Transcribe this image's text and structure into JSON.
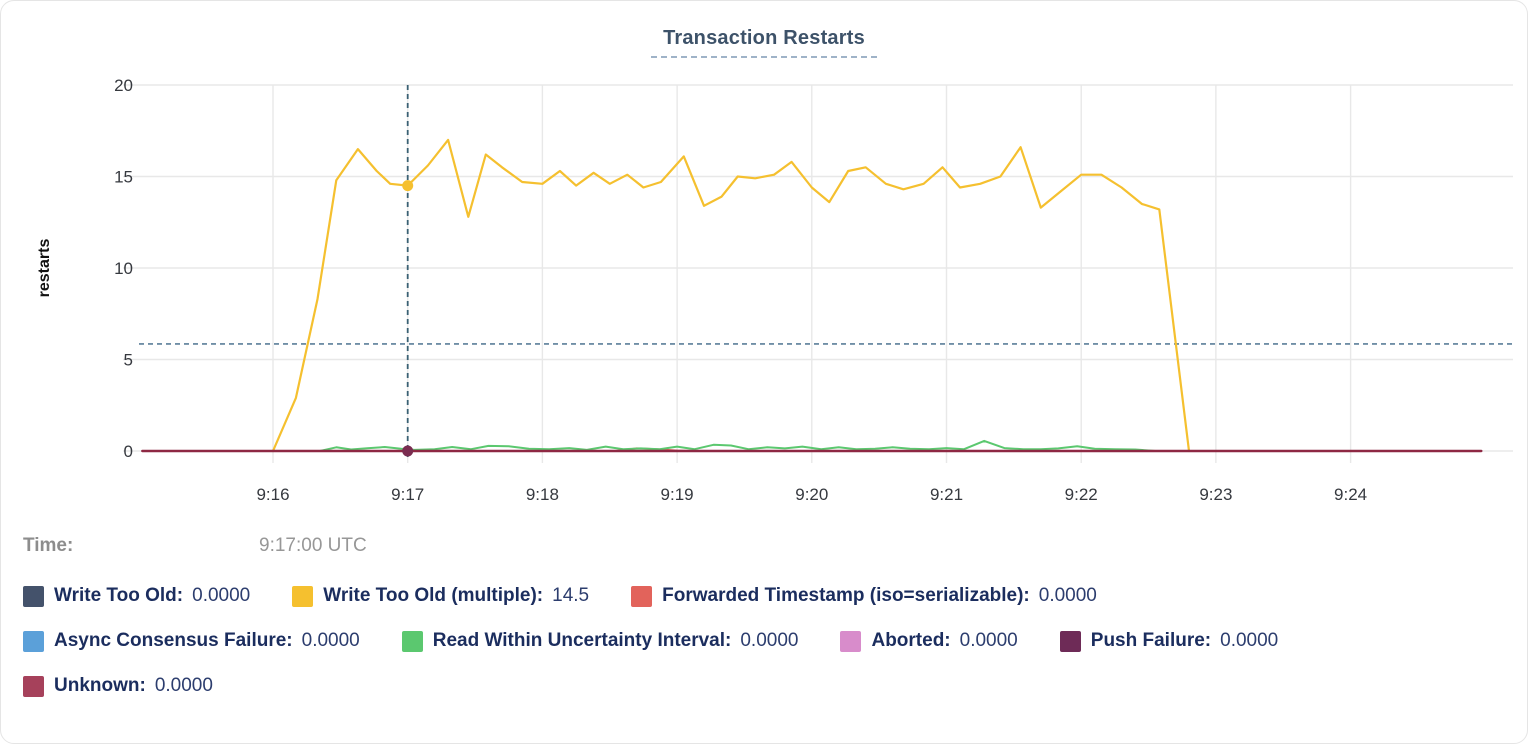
{
  "header": {
    "title": "Transaction Restarts"
  },
  "time_row": {
    "label": "Time:",
    "value": "9:17:00 UTC"
  },
  "legend_rows": [
    [
      0,
      1,
      2
    ],
    [
      3,
      4,
      5,
      6
    ],
    [
      7
    ]
  ],
  "chart_data": {
    "type": "line",
    "title": "Transaction Restarts",
    "xlabel": "",
    "ylabel": "restarts",
    "ylim": [
      0,
      20
    ],
    "yticks": [
      0,
      5,
      10,
      15,
      20
    ],
    "xticks": [
      {
        "t": 16,
        "label": "9:16"
      },
      {
        "t": 17,
        "label": "9:17"
      },
      {
        "t": 18,
        "label": "9:18"
      },
      {
        "t": 19,
        "label": "9:19"
      },
      {
        "t": 20,
        "label": "9:20"
      },
      {
        "t": 21,
        "label": "9:21"
      },
      {
        "t": 22,
        "label": "9:22"
      },
      {
        "t": 23,
        "label": "9:23"
      },
      {
        "t": 24,
        "label": "9:24"
      }
    ],
    "x_unit": "minutes after 9:00 UTC",
    "grid": true,
    "legend_position": "bottom",
    "crosshair": {
      "time": 17,
      "time_label": "9:17:00 UTC",
      "guide_value": 5.85,
      "dots": [
        {
          "t": 17,
          "v": 14.5,
          "color": "#F5C02F"
        },
        {
          "t": 17,
          "v": 0,
          "color": "#7A2C50"
        }
      ]
    },
    "series": [
      {
        "name": "Write Too Old",
        "color": "#44526B",
        "hover_value": "0.0000",
        "width": 1.8,
        "points": [
          [
            15.03,
            0
          ],
          [
            24.97,
            0
          ]
        ]
      },
      {
        "name": "Write Too Old (multiple)",
        "color": "#F5C02F",
        "hover_value": "14.5",
        "width": 2.2,
        "points": [
          [
            16.0,
            0
          ],
          [
            16.17,
            2.9
          ],
          [
            16.33,
            8.3
          ],
          [
            16.47,
            14.8
          ],
          [
            16.63,
            16.5
          ],
          [
            16.77,
            15.3
          ],
          [
            16.87,
            14.6
          ],
          [
            17.0,
            14.5
          ],
          [
            17.15,
            15.6
          ],
          [
            17.3,
            17.0
          ],
          [
            17.45,
            12.8
          ],
          [
            17.58,
            16.2
          ],
          [
            17.7,
            15.5
          ],
          [
            17.85,
            14.7
          ],
          [
            18.0,
            14.6
          ],
          [
            18.13,
            15.3
          ],
          [
            18.25,
            14.5
          ],
          [
            18.38,
            15.2
          ],
          [
            18.5,
            14.6
          ],
          [
            18.63,
            15.1
          ],
          [
            18.75,
            14.4
          ],
          [
            18.88,
            14.7
          ],
          [
            19.05,
            16.1
          ],
          [
            19.2,
            13.4
          ],
          [
            19.33,
            13.9
          ],
          [
            19.45,
            15.0
          ],
          [
            19.58,
            14.9
          ],
          [
            19.72,
            15.1
          ],
          [
            19.85,
            15.8
          ],
          [
            20.0,
            14.4
          ],
          [
            20.13,
            13.6
          ],
          [
            20.27,
            15.3
          ],
          [
            20.4,
            15.5
          ],
          [
            20.55,
            14.6
          ],
          [
            20.68,
            14.3
          ],
          [
            20.83,
            14.6
          ],
          [
            20.97,
            15.5
          ],
          [
            21.1,
            14.4
          ],
          [
            21.25,
            14.6
          ],
          [
            21.4,
            15.0
          ],
          [
            21.55,
            16.6
          ],
          [
            21.7,
            13.3
          ],
          [
            21.85,
            14.2
          ],
          [
            22.0,
            15.1
          ],
          [
            22.15,
            15.1
          ],
          [
            22.3,
            14.4
          ],
          [
            22.45,
            13.5
          ],
          [
            22.58,
            13.2
          ],
          [
            22.8,
            0
          ]
        ]
      },
      {
        "name": "Forwarded Timestamp (iso=serializable)",
        "color": "#E2635B",
        "hover_value": "0.0000",
        "width": 2,
        "points": [
          [
            16.0,
            0
          ],
          [
            18.55,
            0
          ],
          [
            18.7,
            0.14
          ],
          [
            18.85,
            0.1
          ],
          [
            19.0,
            0.02
          ],
          [
            19.1,
            0
          ],
          [
            22.8,
            0
          ]
        ]
      },
      {
        "name": "Async Consensus Failure",
        "color": "#5BA0D9",
        "hover_value": "0.0000",
        "width": 1.8,
        "points": [
          [
            15.03,
            0
          ],
          [
            24.97,
            0
          ]
        ]
      },
      {
        "name": "Read Within Uncertainty Interval",
        "color": "#5BC86F",
        "hover_value": "0.0000",
        "width": 2,
        "points": [
          [
            16.35,
            0
          ],
          [
            16.47,
            0.2
          ],
          [
            16.58,
            0.08
          ],
          [
            16.7,
            0.15
          ],
          [
            16.83,
            0.22
          ],
          [
            16.95,
            0.12
          ],
          [
            17.05,
            0.06
          ],
          [
            17.2,
            0.1
          ],
          [
            17.33,
            0.22
          ],
          [
            17.47,
            0.1
          ],
          [
            17.6,
            0.28
          ],
          [
            17.75,
            0.26
          ],
          [
            17.9,
            0.12
          ],
          [
            18.05,
            0.1
          ],
          [
            18.2,
            0.16
          ],
          [
            18.33,
            0.06
          ],
          [
            18.47,
            0.24
          ],
          [
            18.6,
            0.1
          ],
          [
            18.73,
            0.14
          ],
          [
            18.87,
            0.1
          ],
          [
            19.0,
            0.24
          ],
          [
            19.13,
            0.1
          ],
          [
            19.27,
            0.34
          ],
          [
            19.4,
            0.3
          ],
          [
            19.53,
            0.1
          ],
          [
            19.67,
            0.2
          ],
          [
            19.8,
            0.14
          ],
          [
            19.93,
            0.24
          ],
          [
            20.07,
            0.1
          ],
          [
            20.2,
            0.2
          ],
          [
            20.33,
            0.1
          ],
          [
            20.47,
            0.12
          ],
          [
            20.6,
            0.2
          ],
          [
            20.73,
            0.12
          ],
          [
            20.87,
            0.1
          ],
          [
            21.0,
            0.16
          ],
          [
            21.13,
            0.1
          ],
          [
            21.28,
            0.55
          ],
          [
            21.43,
            0.16
          ],
          [
            21.57,
            0.1
          ],
          [
            21.7,
            0.1
          ],
          [
            21.83,
            0.14
          ],
          [
            21.97,
            0.26
          ],
          [
            22.1,
            0.12
          ],
          [
            22.25,
            0.1
          ],
          [
            22.4,
            0.08
          ],
          [
            22.55,
            0
          ]
        ]
      },
      {
        "name": "Aborted",
        "color": "#D88CCB",
        "hover_value": "0.0000",
        "width": 1.8,
        "points": [
          [
            15.03,
            0
          ],
          [
            24.97,
            0
          ]
        ]
      },
      {
        "name": "Push Failure",
        "color": "#6E2B57",
        "hover_value": "0.0000",
        "width": 1.8,
        "points": [
          [
            15.03,
            0
          ],
          [
            24.97,
            0
          ]
        ]
      },
      {
        "name": "Unknown",
        "color": "#A6415B",
        "line_color": "#8E2843",
        "hover_value": "0.0000",
        "width": 2.4,
        "points": [
          [
            15.03,
            0
          ],
          [
            24.97,
            0
          ]
        ]
      }
    ],
    "colors": {
      "grid": "#e8e8e8",
      "axis_text": "#36393f",
      "crosshair": "#3a6073",
      "guide_line": "#5b7f99",
      "title_text": "#3d5269"
    }
  }
}
